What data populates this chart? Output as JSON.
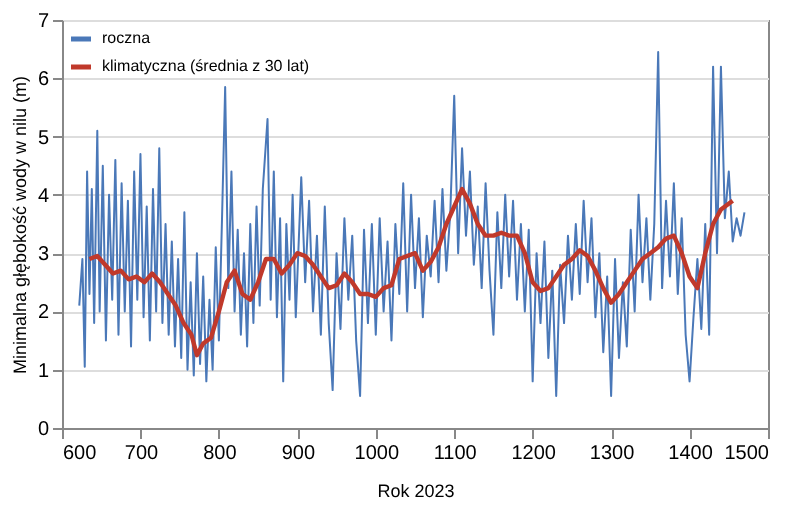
{
  "chart_data": {
    "type": "line",
    "xlabel": "Rok 2023",
    "ylabel": "Minimalna głębokość wody w nilu (m)",
    "xlim": [
      600,
      1500
    ],
    "xticks": [
      600,
      700,
      800,
      900,
      1000,
      1100,
      1200,
      1300,
      1400,
      1500
    ],
    "ylim": [
      0,
      7
    ],
    "yticks": [
      0,
      1,
      2,
      3,
      4,
      5,
      6,
      7
    ],
    "grid": "y",
    "legend": "top left",
    "line_style": "solid",
    "marker": "none",
    "series": [
      {
        "name": "roczna",
        "color": "#4a78b8",
        "x": [
          622,
          626,
          629,
          632,
          635,
          638,
          641,
          645,
          648,
          652,
          656,
          660,
          664,
          668,
          672,
          676,
          680,
          684,
          688,
          692,
          696,
          700,
          704,
          708,
          712,
          716,
          720,
          724,
          728,
          732,
          736,
          740,
          744,
          748,
          752,
          756,
          760,
          764,
          768,
          772,
          776,
          780,
          784,
          788,
          792,
          796,
          800,
          804,
          808,
          812,
          816,
          820,
          824,
          828,
          832,
          836,
          840,
          844,
          848,
          852,
          856,
          862,
          866,
          870,
          874,
          878,
          882,
          886,
          890,
          894,
          898,
          905,
          910,
          915,
          920,
          925,
          930,
          935,
          940,
          945,
          950,
          955,
          960,
          965,
          970,
          975,
          980,
          985,
          990,
          995,
          1000,
          1005,
          1010,
          1015,
          1020,
          1025,
          1030,
          1035,
          1040,
          1045,
          1050,
          1055,
          1060,
          1065,
          1070,
          1075,
          1080,
          1085,
          1090,
          1095,
          1100,
          1105,
          1110,
          1115,
          1120,
          1125,
          1130,
          1135,
          1140,
          1145,
          1150,
          1155,
          1160,
          1165,
          1170,
          1175,
          1180,
          1185,
          1190,
          1195,
          1200,
          1205,
          1210,
          1215,
          1220,
          1225,
          1230,
          1235,
          1240,
          1245,
          1250,
          1255,
          1260,
          1265,
          1270,
          1275,
          1280,
          1285,
          1290,
          1295,
          1300,
          1305,
          1310,
          1315,
          1320,
          1325,
          1330,
          1335,
          1340,
          1345,
          1350,
          1355,
          1360,
          1365,
          1370,
          1375,
          1380,
          1385,
          1390,
          1395,
          1400,
          1405,
          1410,
          1415,
          1420,
          1425,
          1430,
          1435,
          1440,
          1445,
          1450,
          1455,
          1460,
          1465,
          1470
        ],
        "values": [
          2.1,
          2.9,
          1.05,
          4.4,
          2.3,
          4.1,
          1.8,
          5.1,
          2.0,
          4.5,
          1.5,
          4.0,
          2.2,
          4.6,
          1.6,
          4.2,
          2.0,
          3.9,
          1.4,
          4.4,
          2.2,
          4.7,
          1.9,
          3.8,
          1.5,
          4.1,
          2.0,
          4.8,
          1.8,
          3.5,
          1.6,
          3.2,
          1.4,
          2.9,
          1.2,
          3.7,
          1.0,
          2.5,
          0.9,
          3.0,
          1.1,
          2.6,
          0.8,
          2.2,
          1.0,
          3.1,
          1.5,
          3.6,
          5.85,
          2.4,
          4.4,
          2.0,
          3.4,
          1.6,
          3.0,
          1.4,
          3.5,
          1.8,
          3.8,
          2.1,
          4.1,
          5.3,
          2.2,
          4.4,
          1.9,
          3.6,
          0.8,
          3.5,
          2.2,
          4.0,
          1.9,
          4.3,
          2.5,
          3.9,
          2.0,
          3.3,
          1.6,
          3.8,
          1.8,
          0.65,
          3.0,
          1.7,
          3.6,
          2.2,
          3.3,
          1.5,
          0.55,
          3.4,
          1.8,
          3.5,
          1.6,
          3.6,
          2.0,
          3.2,
          1.5,
          3.5,
          2.3,
          4.2,
          2.0,
          4.0,
          2.4,
          3.6,
          1.9,
          3.3,
          2.6,
          3.9,
          2.5,
          4.1,
          2.7,
          3.7,
          5.7,
          3.0,
          4.8,
          3.3,
          4.4,
          2.8,
          3.8,
          2.4,
          4.2,
          2.7,
          1.6,
          3.7,
          2.4,
          4.0,
          2.6,
          3.9,
          2.2,
          3.5,
          2.0,
          3.4,
          0.8,
          3.0,
          1.8,
          3.2,
          1.2,
          2.7,
          0.55,
          2.8,
          1.8,
          3.3,
          2.2,
          3.5,
          2.3,
          3.9,
          2.5,
          3.6,
          1.9,
          3.0,
          1.3,
          2.6,
          0.55,
          2.9,
          1.2,
          2.5,
          1.4,
          3.4,
          2.0,
          4.0,
          2.5,
          3.6,
          2.2,
          3.5,
          6.45,
          2.4,
          3.9,
          2.6,
          4.2,
          2.3,
          3.6,
          1.6,
          0.8,
          1.9,
          2.9,
          1.7,
          3.5,
          1.6,
          6.2,
          3.0,
          6.2,
          3.6,
          4.4,
          3.2,
          3.6,
          3.3,
          3.7
        ]
      },
      {
        "name": "klimatyczna (średnia z 30 lat)",
        "color": "#c0392b",
        "x": [
          635,
          645,
          655,
          665,
          675,
          685,
          695,
          705,
          715,
          725,
          735,
          745,
          755,
          765,
          772,
          780,
          790,
          800,
          810,
          820,
          830,
          840,
          850,
          860,
          870,
          880,
          890,
          900,
          910,
          920,
          930,
          940,
          950,
          960,
          970,
          980,
          990,
          1000,
          1010,
          1020,
          1030,
          1040,
          1050,
          1060,
          1070,
          1080,
          1090,
          1100,
          1110,
          1120,
          1130,
          1140,
          1150,
          1160,
          1170,
          1180,
          1190,
          1200,
          1210,
          1220,
          1230,
          1240,
          1250,
          1260,
          1270,
          1280,
          1290,
          1300,
          1310,
          1320,
          1330,
          1340,
          1350,
          1360,
          1370,
          1380,
          1390,
          1400,
          1410,
          1420,
          1430,
          1440,
          1455
        ],
        "values": [
          2.9,
          2.95,
          2.8,
          2.65,
          2.7,
          2.55,
          2.6,
          2.5,
          2.65,
          2.5,
          2.3,
          2.1,
          1.8,
          1.6,
          1.25,
          1.45,
          1.55,
          2.0,
          2.5,
          2.7,
          2.3,
          2.2,
          2.5,
          2.9,
          2.9,
          2.65,
          2.8,
          3.0,
          2.95,
          2.8,
          2.6,
          2.4,
          2.45,
          2.65,
          2.5,
          2.3,
          2.3,
          2.25,
          2.4,
          2.45,
          2.9,
          2.95,
          3.0,
          2.7,
          2.85,
          3.1,
          3.5,
          3.8,
          4.1,
          3.85,
          3.5,
          3.3,
          3.3,
          3.35,
          3.3,
          3.3,
          3.0,
          2.5,
          2.35,
          2.4,
          2.6,
          2.8,
          2.9,
          3.05,
          2.95,
          2.7,
          2.4,
          2.15,
          2.3,
          2.5,
          2.7,
          2.9,
          3.0,
          3.1,
          3.25,
          3.3,
          3.0,
          2.6,
          2.4,
          3.0,
          3.5,
          3.75,
          3.9
        ]
      }
    ]
  }
}
